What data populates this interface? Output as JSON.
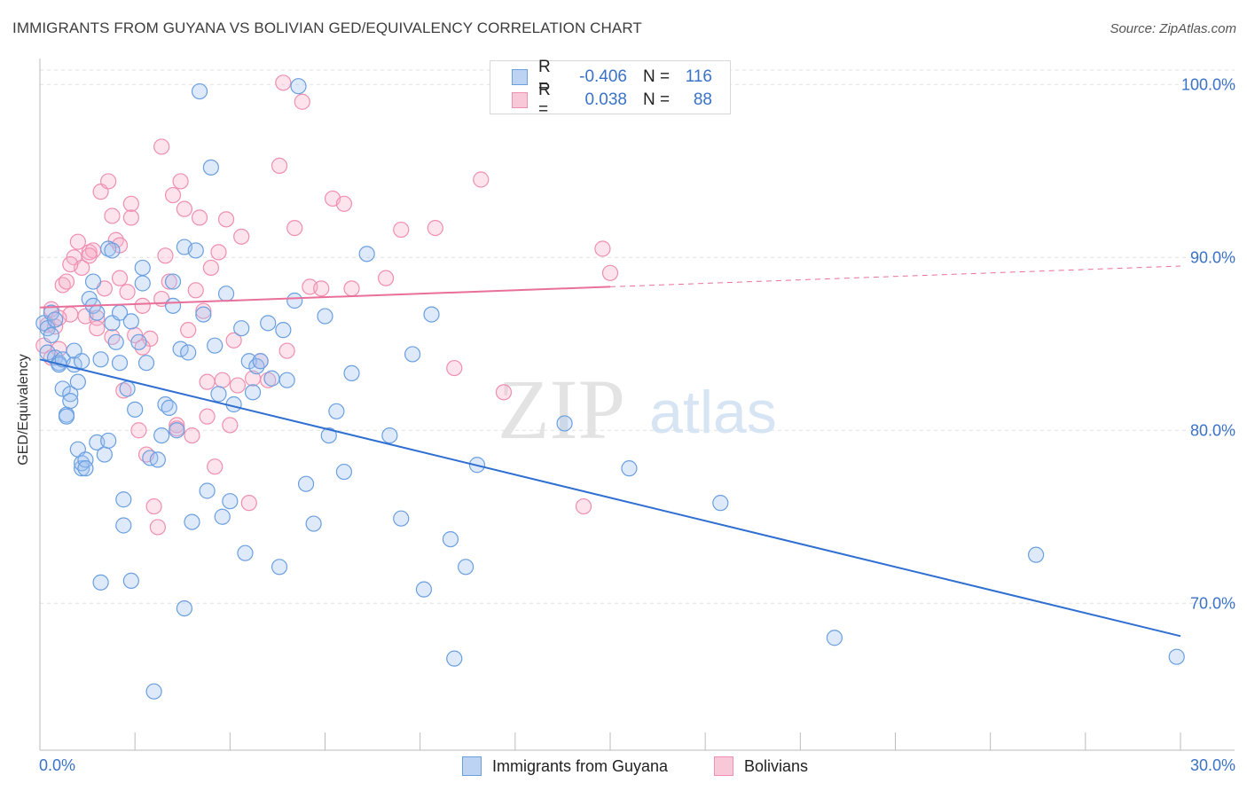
{
  "header": {
    "title": "IMMIGRANTS FROM GUYANA VS BOLIVIAN GED/EQUIVALENCY CORRELATION CHART",
    "source": "Source: ZipAtlas.com"
  },
  "watermark": {
    "zip": "ZIP",
    "atlas": "atlas"
  },
  "legend": {
    "rows": [
      {
        "r_label": "R =",
        "r_value": "-0.406",
        "n_label": "N =",
        "n_value": "116",
        "color": "#6a9fe0"
      },
      {
        "r_label": "R =",
        "r_value": "0.038",
        "n_label": "N =",
        "n_value": "88",
        "color": "#ef8fb0"
      }
    ]
  },
  "bottom_legend": {
    "series1": "Immigrants from Guyana",
    "series2": "Bolivians"
  },
  "chart_data": {
    "type": "scatter",
    "title": "IMMIGRANTS FROM GUYANA VS BOLIVIAN GED/EQUIVALENCY CORRELATION CHART",
    "xlabel": "",
    "ylabel": "GED/Equivalency",
    "xlim": [
      0,
      30
    ],
    "ylim": [
      61.5,
      101.5
    ],
    "x_tick_labels": [
      "0.0%",
      "30.0%"
    ],
    "y_ticks": [
      70,
      80,
      90,
      100
    ],
    "y_tick_labels": [
      "70.0%",
      "80.0%",
      "90.0%",
      "100.0%"
    ],
    "grid": true,
    "legend_position": "top-center",
    "colors": {
      "series1": "#6a9fe0",
      "series2": "#ef8fb0",
      "line1": "#2e6fd1",
      "line2": "#e8709a"
    },
    "series": [
      {
        "name": "Immigrants from Guyana",
        "R": -0.406,
        "N": 116,
        "trend": {
          "x": [
            0,
            30
          ],
          "y": [
            84.1,
            68.1
          ],
          "solid_to": 30
        },
        "points": [
          [
            0.1,
            86.2
          ],
          [
            0.2,
            85.9
          ],
          [
            0.2,
            84.5
          ],
          [
            0.3,
            85.5
          ],
          [
            0.3,
            86.8
          ],
          [
            0.4,
            84.2
          ],
          [
            0.4,
            86.4
          ],
          [
            0.5,
            83.9
          ],
          [
            0.5,
            83.8
          ],
          [
            0.6,
            84.1
          ],
          [
            0.6,
            82.4
          ],
          [
            0.7,
            80.9
          ],
          [
            0.7,
            80.8
          ],
          [
            0.8,
            82.1
          ],
          [
            0.8,
            81.7
          ],
          [
            0.9,
            83.8
          ],
          [
            0.9,
            84.6
          ],
          [
            1.0,
            78.9
          ],
          [
            1.0,
            82.8
          ],
          [
            1.1,
            77.8
          ],
          [
            1.1,
            78.1
          ],
          [
            1.2,
            78.3
          ],
          [
            1.2,
            77.8
          ],
          [
            1.3,
            87.6
          ],
          [
            1.4,
            87.2
          ],
          [
            1.4,
            88.6
          ],
          [
            1.5,
            86.8
          ],
          [
            1.5,
            79.3
          ],
          [
            1.6,
            84.1
          ],
          [
            1.7,
            78.6
          ],
          [
            1.8,
            90.5
          ],
          [
            1.8,
            79.4
          ],
          [
            1.9,
            90.4
          ],
          [
            1.9,
            86.2
          ],
          [
            2.0,
            85.1
          ],
          [
            2.1,
            83.9
          ],
          [
            2.1,
            86.8
          ],
          [
            2.2,
            74.5
          ],
          [
            2.2,
            76.0
          ],
          [
            2.3,
            82.4
          ],
          [
            2.4,
            86.3
          ],
          [
            2.5,
            81.2
          ],
          [
            2.6,
            85.1
          ],
          [
            2.7,
            88.5
          ],
          [
            2.7,
            89.4
          ],
          [
            2.8,
            83.9
          ],
          [
            2.9,
            78.4
          ],
          [
            3.0,
            64.9
          ],
          [
            3.1,
            78.3
          ],
          [
            3.2,
            79.7
          ],
          [
            3.3,
            81.5
          ],
          [
            3.4,
            81.3
          ],
          [
            3.5,
            88.6
          ],
          [
            3.5,
            87.2
          ],
          [
            3.6,
            80.0
          ],
          [
            3.7,
            84.7
          ],
          [
            3.8,
            90.6
          ],
          [
            3.9,
            84.5
          ],
          [
            4.0,
            74.7
          ],
          [
            4.1,
            90.4
          ],
          [
            4.2,
            99.6
          ],
          [
            4.3,
            86.7
          ],
          [
            4.4,
            76.5
          ],
          [
            4.5,
            95.2
          ],
          [
            4.6,
            84.9
          ],
          [
            4.7,
            82.1
          ],
          [
            4.8,
            75.0
          ],
          [
            4.9,
            87.9
          ],
          [
            5.0,
            75.9
          ],
          [
            5.1,
            81.5
          ],
          [
            5.3,
            85.9
          ],
          [
            5.4,
            72.9
          ],
          [
            5.5,
            84.0
          ],
          [
            5.6,
            82.2
          ],
          [
            5.7,
            83.7
          ],
          [
            5.8,
            84.0
          ],
          [
            6.0,
            86.2
          ],
          [
            6.1,
            83.0
          ],
          [
            6.3,
            72.1
          ],
          [
            6.4,
            85.8
          ],
          [
            6.5,
            82.9
          ],
          [
            6.7,
            87.5
          ],
          [
            6.8,
            99.9
          ],
          [
            7.0,
            76.9
          ],
          [
            7.2,
            74.6
          ],
          [
            7.5,
            86.6
          ],
          [
            7.6,
            79.7
          ],
          [
            7.8,
            81.1
          ],
          [
            8.0,
            77.6
          ],
          [
            8.2,
            83.3
          ],
          [
            8.6,
            90.2
          ],
          [
            9.2,
            79.7
          ],
          [
            9.5,
            74.9
          ],
          [
            9.8,
            84.4
          ],
          [
            10.1,
            70.8
          ],
          [
            10.3,
            86.7
          ],
          [
            10.8,
            73.7
          ],
          [
            10.9,
            66.8
          ],
          [
            11.2,
            72.1
          ],
          [
            11.5,
            78.0
          ],
          [
            13.8,
            80.4
          ],
          [
            15.5,
            77.8
          ],
          [
            17.9,
            75.8
          ],
          [
            20.9,
            68.0
          ],
          [
            26.2,
            72.8
          ],
          [
            29.9,
            66.9
          ],
          [
            1.6,
            71.2
          ],
          [
            2.4,
            71.3
          ],
          [
            3.8,
            69.7
          ],
          [
            1.1,
            84.0
          ]
        ]
      },
      {
        "name": "Bolivians",
        "R": 0.038,
        "N": 88,
        "trend": {
          "x": [
            0,
            30
          ],
          "y": [
            87.1,
            89.5
          ],
          "solid_to": 15
        },
        "points": [
          [
            0.1,
            84.9
          ],
          [
            0.2,
            86.1
          ],
          [
            0.3,
            87.0
          ],
          [
            0.4,
            86.0
          ],
          [
            0.5,
            84.7
          ],
          [
            0.6,
            88.4
          ],
          [
            0.7,
            88.6
          ],
          [
            0.8,
            86.7
          ],
          [
            0.9,
            90.0
          ],
          [
            1.0,
            90.9
          ],
          [
            1.1,
            89.4
          ],
          [
            1.2,
            86.6
          ],
          [
            1.3,
            90.3
          ],
          [
            1.4,
            90.4
          ],
          [
            1.5,
            86.5
          ],
          [
            1.6,
            93.8
          ],
          [
            1.7,
            88.2
          ],
          [
            1.8,
            94.4
          ],
          [
            1.9,
            85.4
          ],
          [
            2.0,
            91.0
          ],
          [
            2.1,
            90.7
          ],
          [
            2.2,
            82.3
          ],
          [
            2.3,
            88.0
          ],
          [
            2.4,
            92.3
          ],
          [
            2.5,
            85.5
          ],
          [
            2.6,
            80.0
          ],
          [
            2.7,
            87.2
          ],
          [
            2.8,
            78.6
          ],
          [
            2.9,
            85.3
          ],
          [
            3.0,
            75.6
          ],
          [
            3.1,
            74.4
          ],
          [
            3.2,
            87.6
          ],
          [
            3.3,
            90.1
          ],
          [
            3.4,
            88.6
          ],
          [
            3.5,
            93.6
          ],
          [
            3.6,
            80.3
          ],
          [
            3.7,
            94.4
          ],
          [
            3.8,
            92.8
          ],
          [
            3.9,
            85.8
          ],
          [
            4.0,
            79.7
          ],
          [
            4.1,
            88.1
          ],
          [
            4.2,
            92.3
          ],
          [
            4.3,
            86.9
          ],
          [
            4.4,
            82.8
          ],
          [
            4.5,
            89.4
          ],
          [
            4.6,
            77.9
          ],
          [
            4.7,
            90.3
          ],
          [
            4.8,
            82.9
          ],
          [
            4.9,
            92.2
          ],
          [
            5.0,
            80.3
          ],
          [
            5.2,
            82.6
          ],
          [
            5.3,
            91.2
          ],
          [
            5.5,
            75.8
          ],
          [
            5.6,
            83.0
          ],
          [
            5.8,
            84.0
          ],
          [
            6.0,
            82.9
          ],
          [
            6.3,
            95.3
          ],
          [
            6.5,
            84.6
          ],
          [
            6.7,
            91.7
          ],
          [
            6.9,
            99.0
          ],
          [
            7.1,
            88.3
          ],
          [
            7.4,
            88.2
          ],
          [
            7.7,
            93.4
          ],
          [
            8.0,
            93.1
          ],
          [
            8.2,
            88.2
          ],
          [
            9.1,
            88.8
          ],
          [
            9.5,
            91.6
          ],
          [
            10.4,
            91.7
          ],
          [
            10.9,
            83.6
          ],
          [
            11.6,
            94.5
          ],
          [
            12.2,
            82.2
          ],
          [
            14.3,
            75.6
          ],
          [
            14.8,
            90.5
          ],
          [
            15.0,
            89.1
          ],
          [
            2.4,
            93.1
          ],
          [
            1.9,
            92.4
          ],
          [
            1.3,
            90.1
          ],
          [
            0.8,
            89.6
          ],
          [
            0.5,
            86.5
          ],
          [
            0.3,
            84.2
          ],
          [
            3.2,
            96.4
          ],
          [
            2.1,
            88.8
          ],
          [
            5.1,
            85.2
          ],
          [
            6.4,
            100.1
          ],
          [
            1.5,
            85.9
          ],
          [
            4.4,
            80.8
          ],
          [
            3.6,
            80.1
          ],
          [
            2.7,
            84.8
          ]
        ]
      }
    ]
  }
}
